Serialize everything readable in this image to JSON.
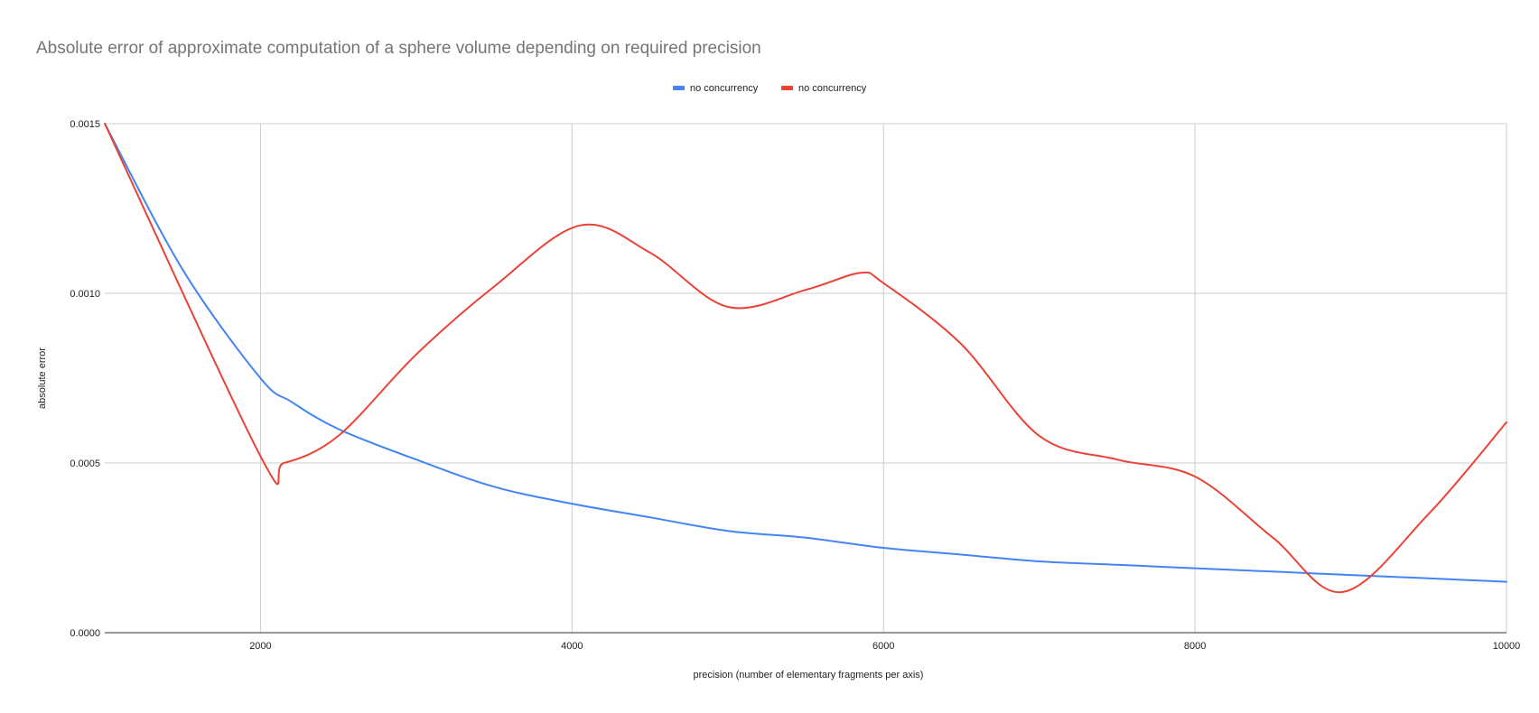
{
  "chart_data": {
    "type": "line",
    "title": "Absolute error of approximate computation of a sphere volume depending on required precision",
    "xlabel": "precision (number of elementary fragments per axis)",
    "ylabel": "absolute error",
    "xlim": [
      1000,
      10000
    ],
    "ylim": [
      0,
      0.0015
    ],
    "x_ticks": [
      "2000",
      "4000",
      "6000",
      "8000",
      "10000"
    ],
    "y_ticks": [
      "0.0000",
      "0.0005",
      "0.0010",
      "0.0015"
    ],
    "grid": true,
    "legend_position": "top-center",
    "series": [
      {
        "name": "no concurrency",
        "color": "#4285f4",
        "x": [
          1000,
          1500,
          2000,
          2200,
          2500,
          3000,
          3500,
          4000,
          4500,
          5000,
          5500,
          6000,
          6500,
          7000,
          7500,
          8000,
          8500,
          9000,
          9500,
          10000
        ],
        "y": [
          0.0015,
          0.00107,
          0.00075,
          0.00068,
          0.0006,
          0.00051,
          0.00043,
          0.00038,
          0.00034,
          0.0003,
          0.00028,
          0.00025,
          0.00023,
          0.00021,
          0.0002,
          0.00019,
          0.00018,
          0.00017,
          0.00016,
          0.00015
        ]
      },
      {
        "name": "no concurrency",
        "color": "#ea4335",
        "x": [
          1000,
          2000,
          2150,
          2500,
          3000,
          3500,
          4050,
          4500,
          5000,
          5500,
          5850,
          6000,
          6500,
          7000,
          7500,
          8000,
          8500,
          8950,
          9500,
          10000
        ],
        "y": [
          0.0015,
          0.00052,
          0.0005,
          0.00058,
          0.00082,
          0.00102,
          0.0012,
          0.00112,
          0.00096,
          0.00101,
          0.00106,
          0.00103,
          0.00085,
          0.00058,
          0.00051,
          0.00046,
          0.00028,
          0.00012,
          0.00035,
          0.00062
        ]
      }
    ]
  }
}
